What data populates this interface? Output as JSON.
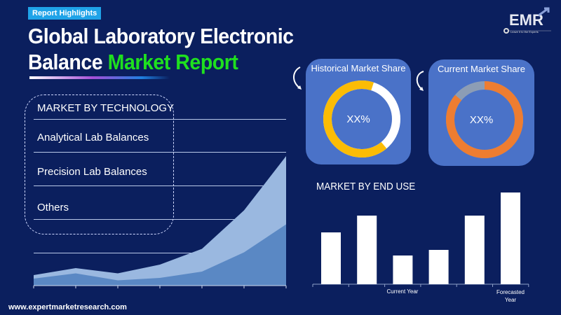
{
  "badge": "Report Highlights",
  "title": {
    "line1": "Global Laboratory Electronic",
    "line2_white": "Balance",
    "line2_green": "Market Report"
  },
  "logo": {
    "text": "EMR",
    "tagline": "Leave it to the Experts"
  },
  "technology": {
    "heading": "MARKET BY TECHNOLOGY",
    "items": [
      "Analytical Lab Balances",
      "Precision Lab Balances",
      "Others"
    ]
  },
  "historical": {
    "title": "Historical Market Share",
    "value": "XX%",
    "colors": {
      "main": "#fbbc05",
      "rest": "#ffffff"
    }
  },
  "current": {
    "title": "Current Market Share",
    "value": "XX%",
    "colors": {
      "main": "#ee7d31",
      "rest": "#8c9db5"
    }
  },
  "end_use": {
    "title": "MARKET BY END USE",
    "label_current": "Current Year",
    "label_forecast": "Forecasted Year"
  },
  "chart_data": [
    {
      "type": "area",
      "series": [
        {
          "values": [
            3,
            5,
            3.5,
            6,
            10.5,
            21.5,
            37
          ]
        },
        {
          "values": [
            2,
            3.5,
            1.5,
            2.2,
            4,
            9.5,
            17.5
          ]
        }
      ],
      "colors": [
        "#9ab8e0",
        "#5a88c4"
      ]
    },
    {
      "type": "bar",
      "values": [
        74,
        98,
        41,
        49,
        98,
        131
      ],
      "categories": [
        "",
        "",
        "Current Year",
        "",
        "",
        "Forecasted Year"
      ],
      "color": "#ffffff"
    }
  ],
  "footer": {
    "url": "www.expertmarketresearch.com"
  }
}
